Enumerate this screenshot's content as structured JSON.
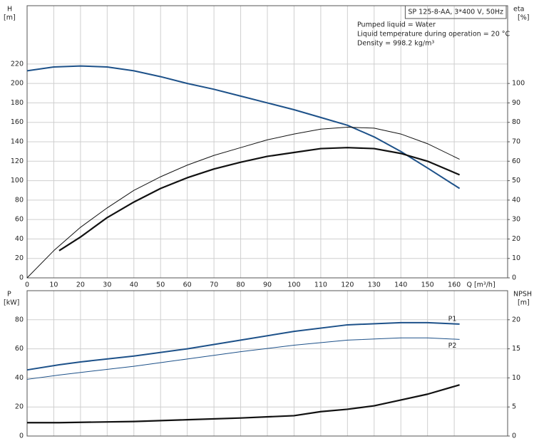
{
  "chart_data": [
    {
      "type": "line",
      "title": "SP 125-8-AA, 3*400 V, 50Hz",
      "annotations": [
        "Pumped liquid = Water",
        "Liquid temperature during operation = 20 °C",
        "Density = 998.2 kg/m³"
      ],
      "ylabel": "H",
      "ylabel_unit": "[m]",
      "y2label": "eta",
      "y2label_unit": "[%]",
      "xlabel": "Q [m³/h]",
      "xlim": [
        0,
        180
      ],
      "xticks": [
        0,
        10,
        20,
        30,
        40,
        50,
        60,
        70,
        80,
        90,
        100,
        110,
        120,
        130,
        140,
        150,
        160
      ],
      "ylim": [
        0,
        280
      ],
      "yticks": [
        0,
        20,
        40,
        60,
        80,
        100,
        120,
        140,
        160,
        180,
        200,
        220
      ],
      "y2lim": [
        0,
        140
      ],
      "y2ticks": [
        0,
        10,
        20,
        30,
        40,
        50,
        60,
        70,
        80,
        90,
        100
      ],
      "grid": true,
      "series": [
        {
          "color": "#1d5189",
          "linewidth": 2,
          "x": [
            0,
            10,
            20,
            30,
            40,
            50,
            60,
            70,
            80,
            90,
            100,
            110,
            120,
            130,
            140,
            150,
            162
          ],
          "values": [
            213,
            217,
            218,
            217,
            213,
            207,
            200,
            194,
            187,
            180,
            173,
            165,
            157,
            145,
            130,
            113,
            92
          ]
        },
        {
          "color": "#111111",
          "linewidth": 1,
          "axis": "y2",
          "x": [
            0,
            10,
            20,
            30,
            40,
            50,
            60,
            70,
            80,
            90,
            100,
            110,
            120,
            130,
            140,
            150,
            162
          ],
          "values": [
            0,
            14,
            26,
            36,
            45,
            52,
            58,
            63,
            67,
            71,
            74,
            76.5,
            77.5,
            77,
            74,
            69,
            61
          ]
        },
        {
          "color": "#111111",
          "linewidth": 2.2,
          "axis": "y2",
          "x": [
            12,
            20,
            30,
            40,
            50,
            60,
            70,
            80,
            90,
            100,
            110,
            120,
            130,
            140,
            150,
            162
          ],
          "values": [
            14,
            21,
            31,
            39,
            46,
            51.5,
            56,
            59.5,
            62.5,
            64.5,
            66.5,
            67,
            66.5,
            64,
            60,
            53
          ]
        }
      ]
    },
    {
      "type": "line",
      "ylabel": "P",
      "ylabel_unit": "[kW]",
      "y2label": "NPSH",
      "y2label_unit": "[m]",
      "xlim": [
        0,
        180
      ],
      "xticks": [
        0,
        10,
        20,
        30,
        40,
        50,
        60,
        70,
        80,
        90,
        100,
        110,
        120,
        130,
        140,
        150,
        160
      ],
      "ylim": [
        0,
        100
      ],
      "yticks": [
        0,
        20,
        40,
        60,
        80
      ],
      "y2lim": [
        0,
        25
      ],
      "y2ticks": [
        0,
        5,
        10,
        15,
        20
      ],
      "grid": true,
      "series": [
        {
          "name": "P1",
          "color": "#1d5189",
          "linewidth": 2,
          "x": [
            0,
            12,
            20,
            40,
            60,
            80,
            100,
            120,
            140,
            150,
            162
          ],
          "values": [
            45.5,
            49,
            51,
            55,
            60,
            66,
            72,
            76.5,
            78,
            78,
            77
          ]
        },
        {
          "name": "P2",
          "color": "#1d5189",
          "linewidth": 1,
          "x": [
            0,
            12,
            40,
            60,
            80,
            100,
            120,
            140,
            150,
            162
          ],
          "values": [
            39,
            42,
            48,
            53,
            58,
            62.5,
            66,
            67.5,
            67.5,
            66.5
          ]
        },
        {
          "color": "#111111",
          "linewidth": 2.2,
          "axis": "y2",
          "x": [
            0,
            12,
            40,
            60,
            80,
            100,
            110,
            120,
            130,
            140,
            150,
            162
          ],
          "values": [
            2.3,
            2.3,
            2.5,
            2.8,
            3.1,
            3.5,
            4.2,
            4.6,
            5.2,
            6.2,
            7.2,
            8.8
          ]
        }
      ]
    }
  ]
}
